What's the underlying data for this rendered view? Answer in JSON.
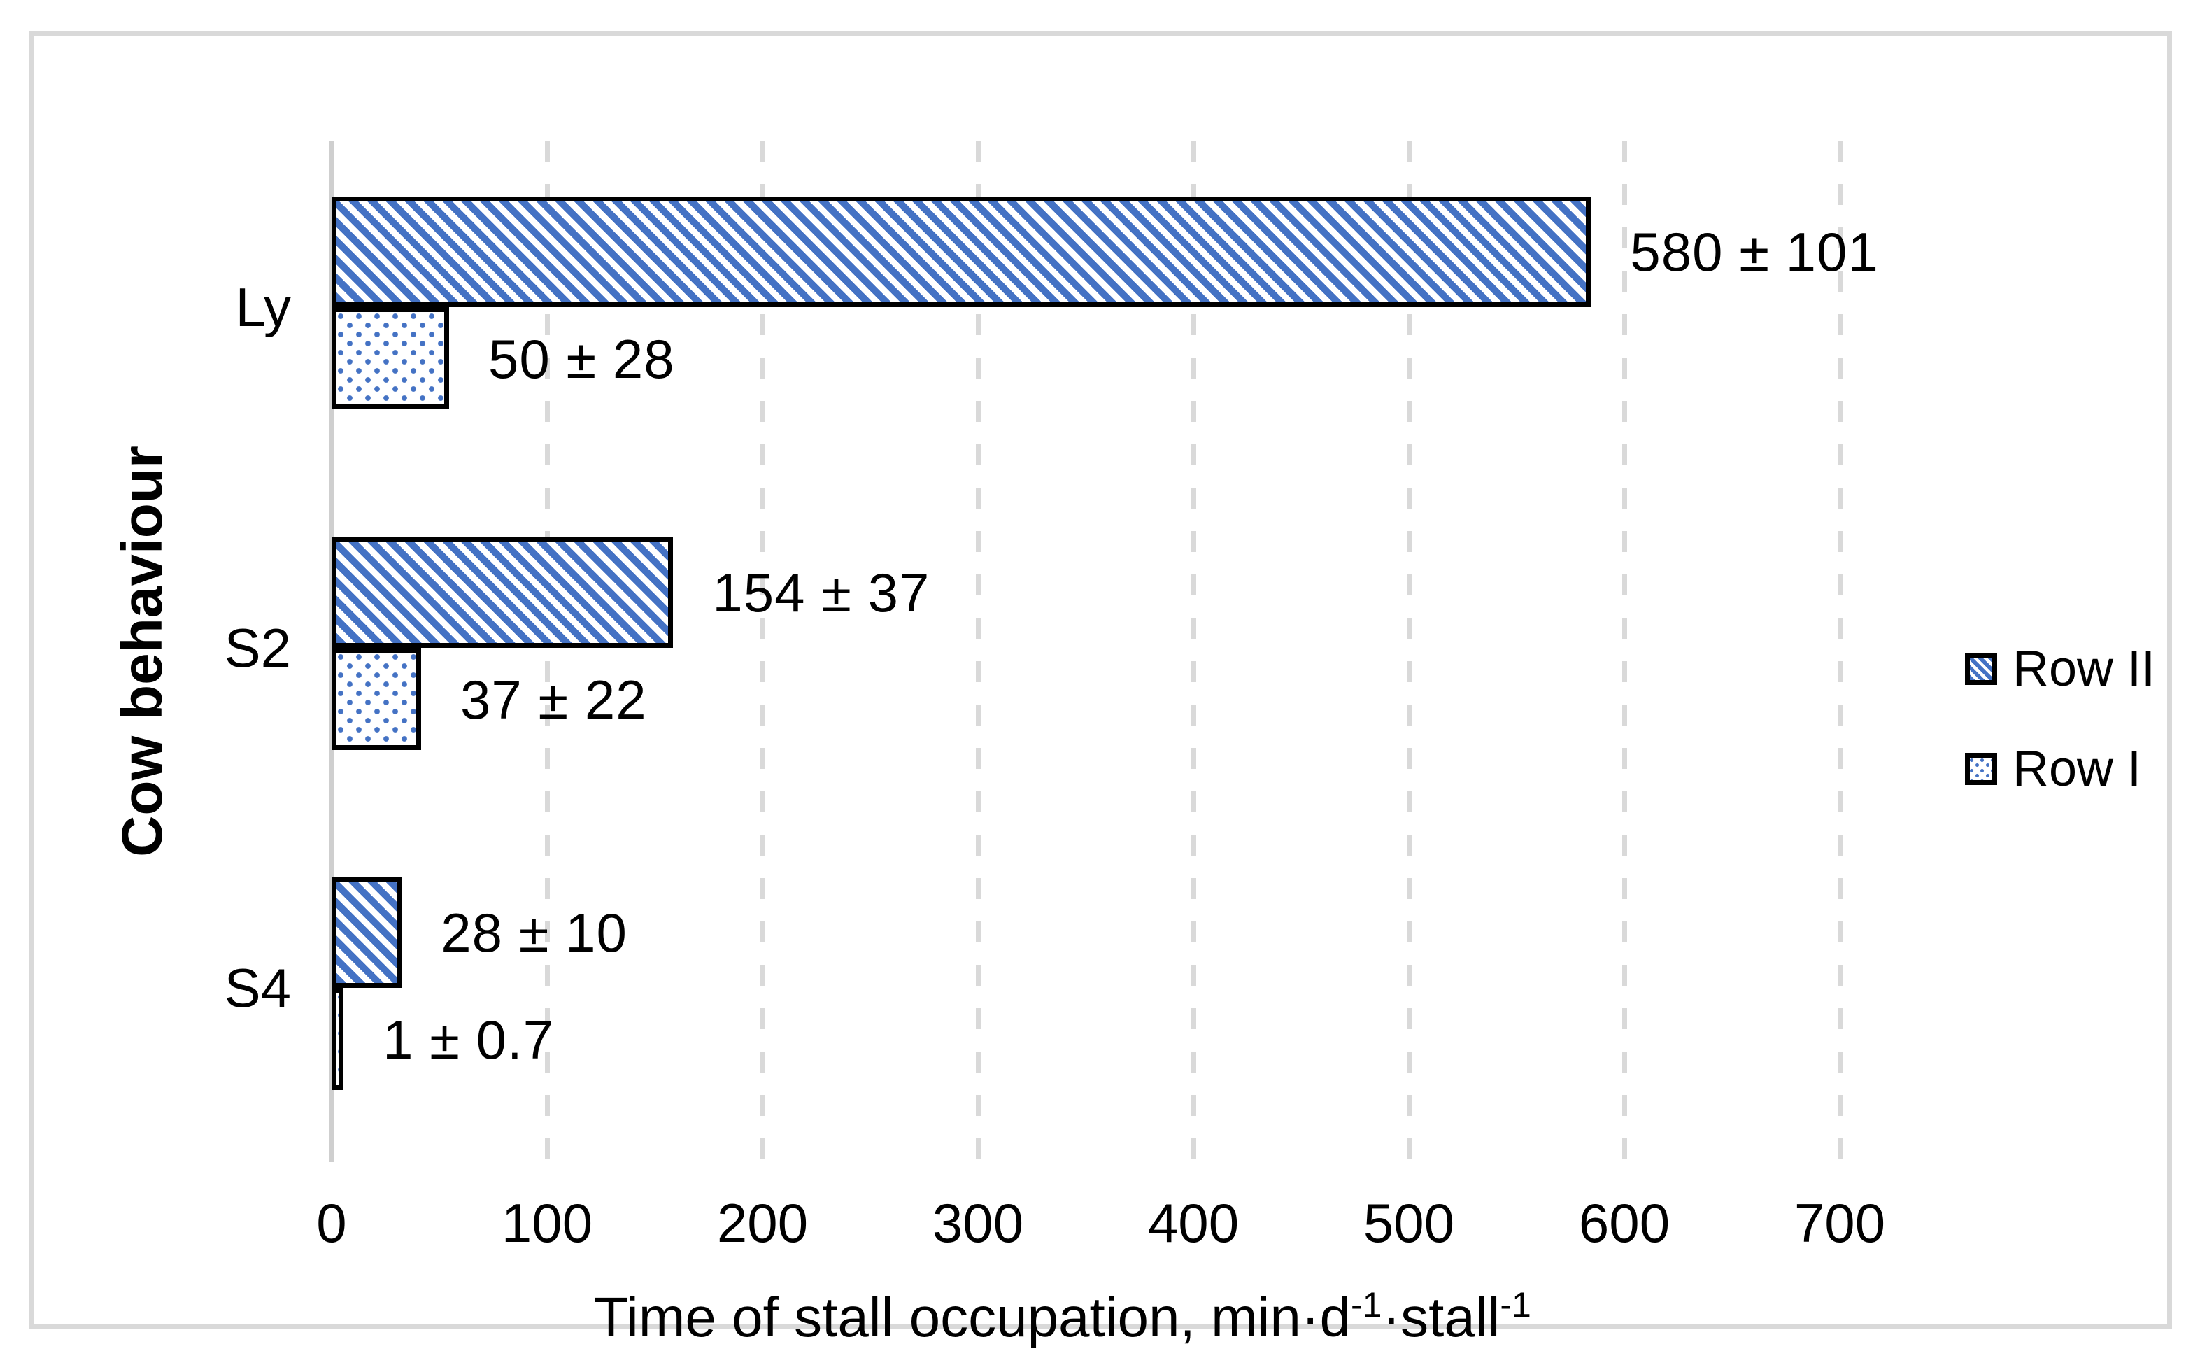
{
  "chart_data": {
    "type": "bar",
    "orientation": "horizontal",
    "title": "",
    "categories": [
      "Ly",
      "S2",
      "S4"
    ],
    "series": [
      {
        "name": "Row II",
        "pattern": "diagonal-hatch",
        "fill_color": "#4472C4",
        "outline_color": "#000000",
        "values": [
          580,
          154,
          28
        ],
        "errors": [
          101,
          37,
          10
        ],
        "data_labels": [
          "580 ± 101",
          "154 ± 37",
          "28 ± 10"
        ]
      },
      {
        "name": "Row I",
        "pattern": "dotted",
        "fill_color": "#4472C4",
        "outline_color": "#000000",
        "values": [
          50,
          37,
          1
        ],
        "errors": [
          28,
          22,
          0.7
        ],
        "data_labels": [
          "50 ± 28",
          "37 ± 22",
          "1 ± 0.7"
        ]
      }
    ],
    "xlabel": "Time of stall occupation, min·d⁻¹·stall⁻¹",
    "ylabel": "Cow behaviour",
    "xlim": [
      0,
      750
    ],
    "xticks": [
      0,
      100,
      200,
      300,
      400,
      500,
      600,
      700
    ],
    "grid": {
      "vertical_gridlines": true,
      "style": "dashed",
      "color": "#d9d9d9",
      "zero_axis_style": "solid"
    },
    "legend_position": "right",
    "legend_entries": [
      "Row II",
      "Row I"
    ]
  },
  "x_axis_title": {
    "prefix": "Time of stall occupation, min·d",
    "sup1": "-1",
    "mid": "·stall",
    "sup2": "-1"
  },
  "y_axis_title": "Cow behaviour",
  "colors": {
    "bar_blue": "#4472C4",
    "outline": "#000000",
    "gridline": "#d9d9d9",
    "frame_border": "#d9d9d9",
    "background": "#ffffff",
    "text": "#000000"
  }
}
